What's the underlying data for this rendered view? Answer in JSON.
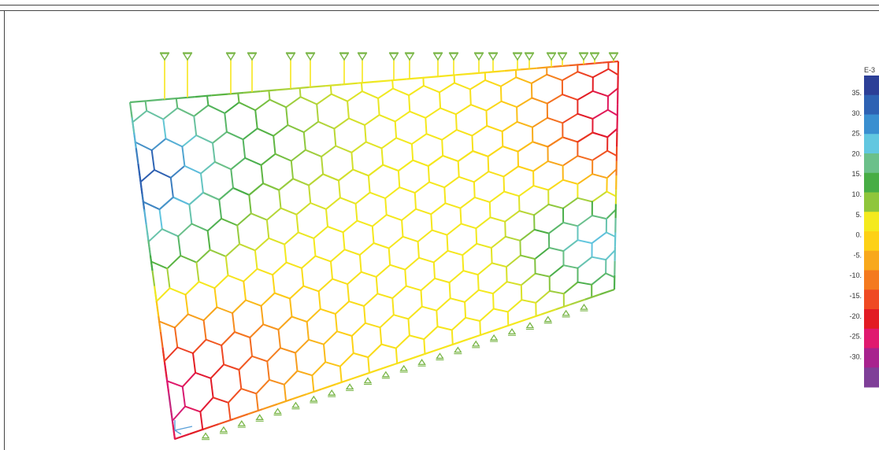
{
  "legend": {
    "exponent_label": "E-3",
    "tick_labels": [
      "35.",
      "30.",
      "25.",
      "20.",
      "15.",
      "10.",
      "5.",
      "0.",
      "-5.",
      "-10.",
      "-15.",
      "-20.",
      "-25.",
      "-30."
    ],
    "colors": [
      "#2c3f97",
      "#2e62b3",
      "#3a8fd0",
      "#62c7e0",
      "#6bc08a",
      "#47ad45",
      "#8fc63b",
      "#f4ea1e",
      "#fdd116",
      "#f8a81c",
      "#f47a1f",
      "#ef4a23",
      "#e21b24",
      "#e0196f",
      "#a8228e",
      "#7f3f98"
    ]
  },
  "colors": {
    "frame": "#444444",
    "support": "#7ab648",
    "axes_triad": "#5aa0d8"
  }
}
